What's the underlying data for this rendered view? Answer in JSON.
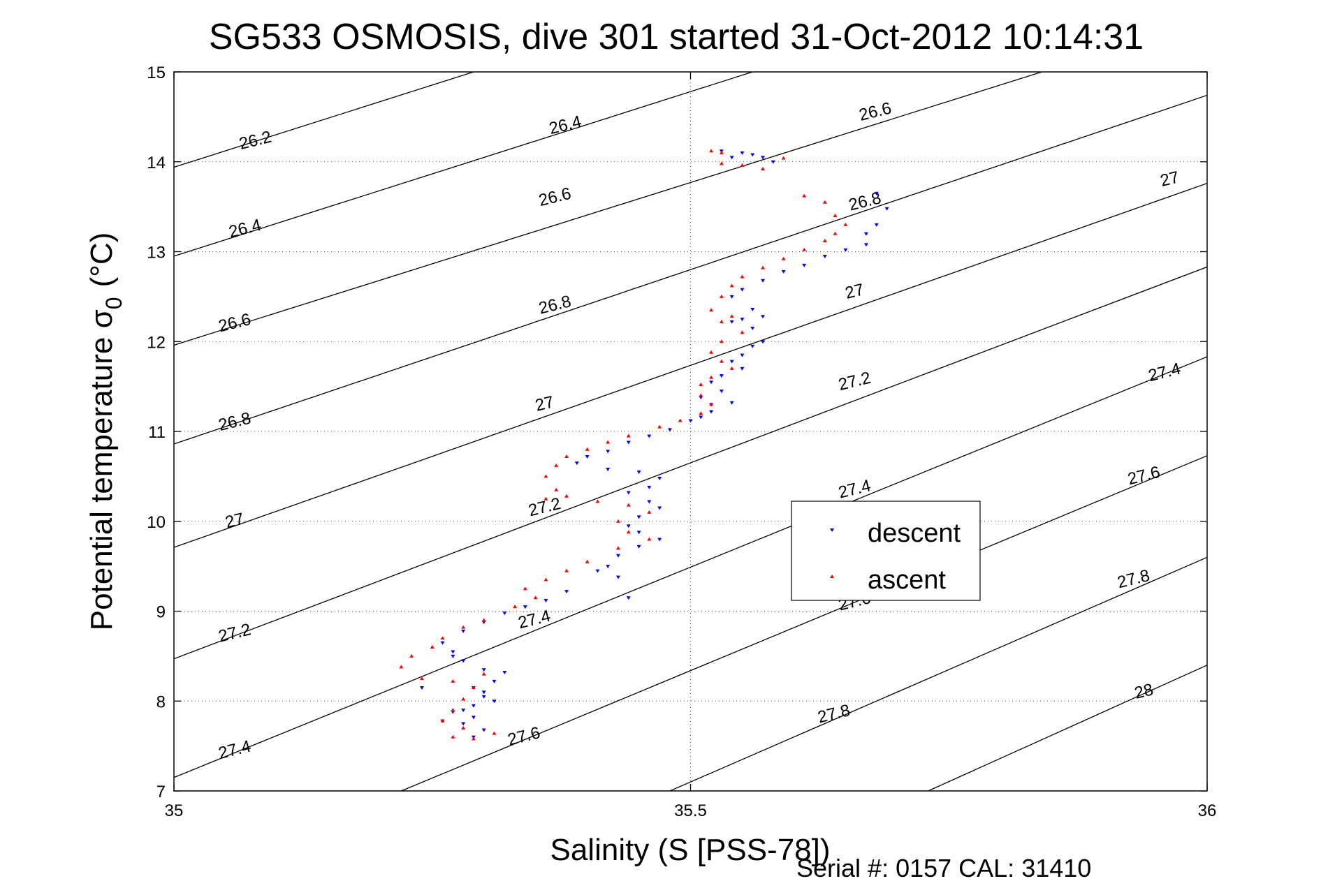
{
  "chart_data": {
    "type": "scatter",
    "title": "SG533 OSMOSIS, dive 301 started 31-Oct-2012 10:14:31",
    "xlabel": "Salinity (S [PSS-78])",
    "ylabel": "Potential temperature σ",
    "ylabel_subscript": "0",
    "ylabel_units": "(°C)",
    "footer": "Serial #: 0157  CAL: 31410",
    "xlim": [
      35,
      36
    ],
    "ylim": [
      7,
      15
    ],
    "x_ticks": [
      35,
      35.5,
      36
    ],
    "x_tick_labels": [
      "35",
      "35.5",
      "36"
    ],
    "y_ticks": [
      7,
      8,
      9,
      10,
      11,
      12,
      13,
      14,
      15
    ],
    "y_tick_labels": [
      "7",
      "8",
      "9",
      "10",
      "11",
      "12",
      "13",
      "14",
      "15"
    ],
    "grid": "dotted",
    "legend_position": "right-middle",
    "density_contours": [
      {
        "level": 26.2,
        "label": "26.2",
        "points": [
          [
            35,
            13.94
          ],
          [
            35.29,
            15.0
          ]
        ]
      },
      {
        "level": 26.4,
        "label": "26.4",
        "points": [
          [
            35,
            12.95
          ],
          [
            35.56,
            15.0
          ]
        ]
      },
      {
        "level": 26.6,
        "label": "26.6",
        "points": [
          [
            35,
            11.96
          ],
          [
            35.84,
            15.0
          ]
        ]
      },
      {
        "level": 26.8,
        "label": "26.8",
        "points": [
          [
            35,
            10.86
          ],
          [
            36,
            14.74
          ]
        ]
      },
      {
        "level": 27,
        "label": "27",
        "points": [
          [
            35,
            9.71
          ],
          [
            36,
            13.76
          ]
        ]
      },
      {
        "level": 27.2,
        "label": "27.2",
        "points": [
          [
            35,
            8.47
          ],
          [
            36,
            12.83
          ]
        ]
      },
      {
        "level": 27.4,
        "label": "27.4",
        "points": [
          [
            35,
            7.15
          ],
          [
            36,
            11.83
          ]
        ]
      },
      {
        "level": 27.6,
        "label": "27.6",
        "points": [
          [
            35.22,
            7.0
          ],
          [
            36,
            10.73
          ]
        ]
      },
      {
        "level": 27.8,
        "label": "27.8",
        "points": [
          [
            35.48,
            7.0
          ],
          [
            36,
            9.6
          ]
        ]
      },
      {
        "level": 28,
        "label": "28",
        "points": [
          [
            35.73,
            7.0
          ],
          [
            36,
            8.4
          ]
        ]
      }
    ],
    "contour_labels": [
      {
        "text": "26.2",
        "x": 35.08,
        "y": 14.18
      },
      {
        "text": "26.4",
        "x": 35.38,
        "y": 14.35
      },
      {
        "text": "26.6",
        "x": 35.68,
        "y": 14.5
      },
      {
        "text": "26.4",
        "x": 35.07,
        "y": 13.2
      },
      {
        "text": "26.6",
        "x": 35.37,
        "y": 13.55
      },
      {
        "text": "26.8",
        "x": 35.67,
        "y": 13.5
      },
      {
        "text": "27",
        "x": 35.965,
        "y": 13.75
      },
      {
        "text": "26.6",
        "x": 35.06,
        "y": 12.15
      },
      {
        "text": "26.8",
        "x": 35.37,
        "y": 12.35
      },
      {
        "text": "27",
        "x": 35.66,
        "y": 12.5
      },
      {
        "text": "26.8",
        "x": 35.06,
        "y": 11.05
      },
      {
        "text": "27",
        "x": 35.36,
        "y": 11.25
      },
      {
        "text": "27.2",
        "x": 35.66,
        "y": 11.5
      },
      {
        "text": "27.4",
        "x": 35.96,
        "y": 11.6
      },
      {
        "text": "27",
        "x": 35.06,
        "y": 9.95
      },
      {
        "text": "27.2",
        "x": 35.36,
        "y": 10.1
      },
      {
        "text": "27.4",
        "x": 35.66,
        "y": 10.3
      },
      {
        "text": "27.6",
        "x": 35.94,
        "y": 10.45
      },
      {
        "text": "27.2",
        "x": 35.06,
        "y": 8.7
      },
      {
        "text": "27.4",
        "x": 35.35,
        "y": 8.85
      },
      {
        "text": "27.6",
        "x": 35.66,
        "y": 9.05
      },
      {
        "text": "27.8",
        "x": 35.93,
        "y": 9.3
      },
      {
        "text": "27.4",
        "x": 35.06,
        "y": 7.4
      },
      {
        "text": "27.6",
        "x": 35.34,
        "y": 7.55
      },
      {
        "text": "27.8",
        "x": 35.64,
        "y": 7.8
      },
      {
        "text": "28",
        "x": 35.94,
        "y": 8.05
      }
    ],
    "series": [
      {
        "name": "descent",
        "color": "#0000ff",
        "marker": "triangle-down",
        "points": [
          [
            35.53,
            14.12
          ],
          [
            35.55,
            14.1
          ],
          [
            35.54,
            14.05
          ],
          [
            35.56,
            14.08
          ],
          [
            35.57,
            14.05
          ],
          [
            35.58,
            14.0
          ],
          [
            35.68,
            13.65
          ],
          [
            35.69,
            13.48
          ],
          [
            35.68,
            13.3
          ],
          [
            35.67,
            13.2
          ],
          [
            35.67,
            13.08
          ],
          [
            35.65,
            13.02
          ],
          [
            35.63,
            12.95
          ],
          [
            35.61,
            12.85
          ],
          [
            35.59,
            12.78
          ],
          [
            35.57,
            12.68
          ],
          [
            35.55,
            12.58
          ],
          [
            35.54,
            12.5
          ],
          [
            35.56,
            12.36
          ],
          [
            35.57,
            12.28
          ],
          [
            35.55,
            12.25
          ],
          [
            35.54,
            12.22
          ],
          [
            35.56,
            12.15
          ],
          [
            35.57,
            12.0
          ],
          [
            35.56,
            11.95
          ],
          [
            35.55,
            11.85
          ],
          [
            35.54,
            11.78
          ],
          [
            35.55,
            11.7
          ],
          [
            35.53,
            11.62
          ],
          [
            35.52,
            11.55
          ],
          [
            35.53,
            11.45
          ],
          [
            35.51,
            11.38
          ],
          [
            35.52,
            11.3
          ],
          [
            35.54,
            11.32
          ],
          [
            35.52,
            11.22
          ],
          [
            35.51,
            11.16
          ],
          [
            35.5,
            11.12
          ],
          [
            35.48,
            11.02
          ],
          [
            35.46,
            10.95
          ],
          [
            35.44,
            10.88
          ],
          [
            35.42,
            10.78
          ],
          [
            35.4,
            10.72
          ],
          [
            35.39,
            10.65
          ],
          [
            35.42,
            10.58
          ],
          [
            35.45,
            10.55
          ],
          [
            35.47,
            10.48
          ],
          [
            35.46,
            10.38
          ],
          [
            35.44,
            10.32
          ],
          [
            35.46,
            10.22
          ],
          [
            35.47,
            10.15
          ],
          [
            35.45,
            10.05
          ],
          [
            35.44,
            9.95
          ],
          [
            35.45,
            9.88
          ],
          [
            35.47,
            9.8
          ],
          [
            35.45,
            9.72
          ],
          [
            35.43,
            9.62
          ],
          [
            35.42,
            9.5
          ],
          [
            35.41,
            9.45
          ],
          [
            35.43,
            9.38
          ],
          [
            35.44,
            9.15
          ],
          [
            35.38,
            9.22
          ],
          [
            35.36,
            9.12
          ],
          [
            35.34,
            9.05
          ],
          [
            35.32,
            8.98
          ],
          [
            35.3,
            8.88
          ],
          [
            35.28,
            8.78
          ],
          [
            35.26,
            8.65
          ],
          [
            35.27,
            8.55
          ],
          [
            35.28,
            8.45
          ],
          [
            35.3,
            8.35
          ],
          [
            35.32,
            8.32
          ],
          [
            35.31,
            8.22
          ],
          [
            35.29,
            8.15
          ],
          [
            35.3,
            8.05
          ],
          [
            35.29,
            7.95
          ],
          [
            35.27,
            7.88
          ],
          [
            35.29,
            7.82
          ],
          [
            35.28,
            7.75
          ],
          [
            35.3,
            7.68
          ],
          [
            35.29,
            7.6
          ],
          [
            35.26,
            7.78
          ],
          [
            35.28,
            7.9
          ],
          [
            35.3,
            8.1
          ],
          [
            35.24,
            8.15
          ],
          [
            35.27,
            8.5
          ],
          [
            35.31,
            8.0
          ]
        ]
      },
      {
        "name": "ascent",
        "color": "#ff0000",
        "marker": "triangle-up",
        "points": [
          [
            35.53,
            14.1
          ],
          [
            35.52,
            14.12
          ],
          [
            35.53,
            13.98
          ],
          [
            35.55,
            13.96
          ],
          [
            35.57,
            13.92
          ],
          [
            35.59,
            14.04
          ],
          [
            35.61,
            13.62
          ],
          [
            35.63,
            13.55
          ],
          [
            35.64,
            13.4
          ],
          [
            35.65,
            13.3
          ],
          [
            35.64,
            13.2
          ],
          [
            35.63,
            13.12
          ],
          [
            35.61,
            13.02
          ],
          [
            35.59,
            12.92
          ],
          [
            35.57,
            12.82
          ],
          [
            35.55,
            12.72
          ],
          [
            35.54,
            12.62
          ],
          [
            35.53,
            12.5
          ],
          [
            35.52,
            12.35
          ],
          [
            35.54,
            12.28
          ],
          [
            35.53,
            12.22
          ],
          [
            35.55,
            12.1
          ],
          [
            35.53,
            12.0
          ],
          [
            35.52,
            11.88
          ],
          [
            35.53,
            11.78
          ],
          [
            35.54,
            11.7
          ],
          [
            35.52,
            11.6
          ],
          [
            35.51,
            11.52
          ],
          [
            35.51,
            11.4
          ],
          [
            35.52,
            11.3
          ],
          [
            35.51,
            11.2
          ],
          [
            35.49,
            11.12
          ],
          [
            35.47,
            11.05
          ],
          [
            35.44,
            10.95
          ],
          [
            35.42,
            10.88
          ],
          [
            35.4,
            10.8
          ],
          [
            35.38,
            10.72
          ],
          [
            35.37,
            10.62
          ],
          [
            35.36,
            10.5
          ],
          [
            35.37,
            10.35
          ],
          [
            35.38,
            10.28
          ],
          [
            35.41,
            10.22
          ],
          [
            35.44,
            10.18
          ],
          [
            35.46,
            10.1
          ],
          [
            35.43,
            10.0
          ],
          [
            35.44,
            9.88
          ],
          [
            35.46,
            9.8
          ],
          [
            35.43,
            9.7
          ],
          [
            35.4,
            9.55
          ],
          [
            35.38,
            9.45
          ],
          [
            35.36,
            9.35
          ],
          [
            35.34,
            9.25
          ],
          [
            35.35,
            9.15
          ],
          [
            35.33,
            9.05
          ],
          [
            35.3,
            8.9
          ],
          [
            35.28,
            8.82
          ],
          [
            35.26,
            8.7
          ],
          [
            35.25,
            8.6
          ],
          [
            35.23,
            8.5
          ],
          [
            35.22,
            8.38
          ],
          [
            35.24,
            8.25
          ],
          [
            35.27,
            8.22
          ],
          [
            35.3,
            8.3
          ],
          [
            35.29,
            8.15
          ],
          [
            35.28,
            8.02
          ],
          [
            35.27,
            7.9
          ],
          [
            35.26,
            7.78
          ],
          [
            35.28,
            7.7
          ],
          [
            35.27,
            7.6
          ],
          [
            35.29,
            7.58
          ],
          [
            35.31,
            7.64
          ],
          [
            35.36,
            10.25
          ]
        ]
      }
    ]
  }
}
